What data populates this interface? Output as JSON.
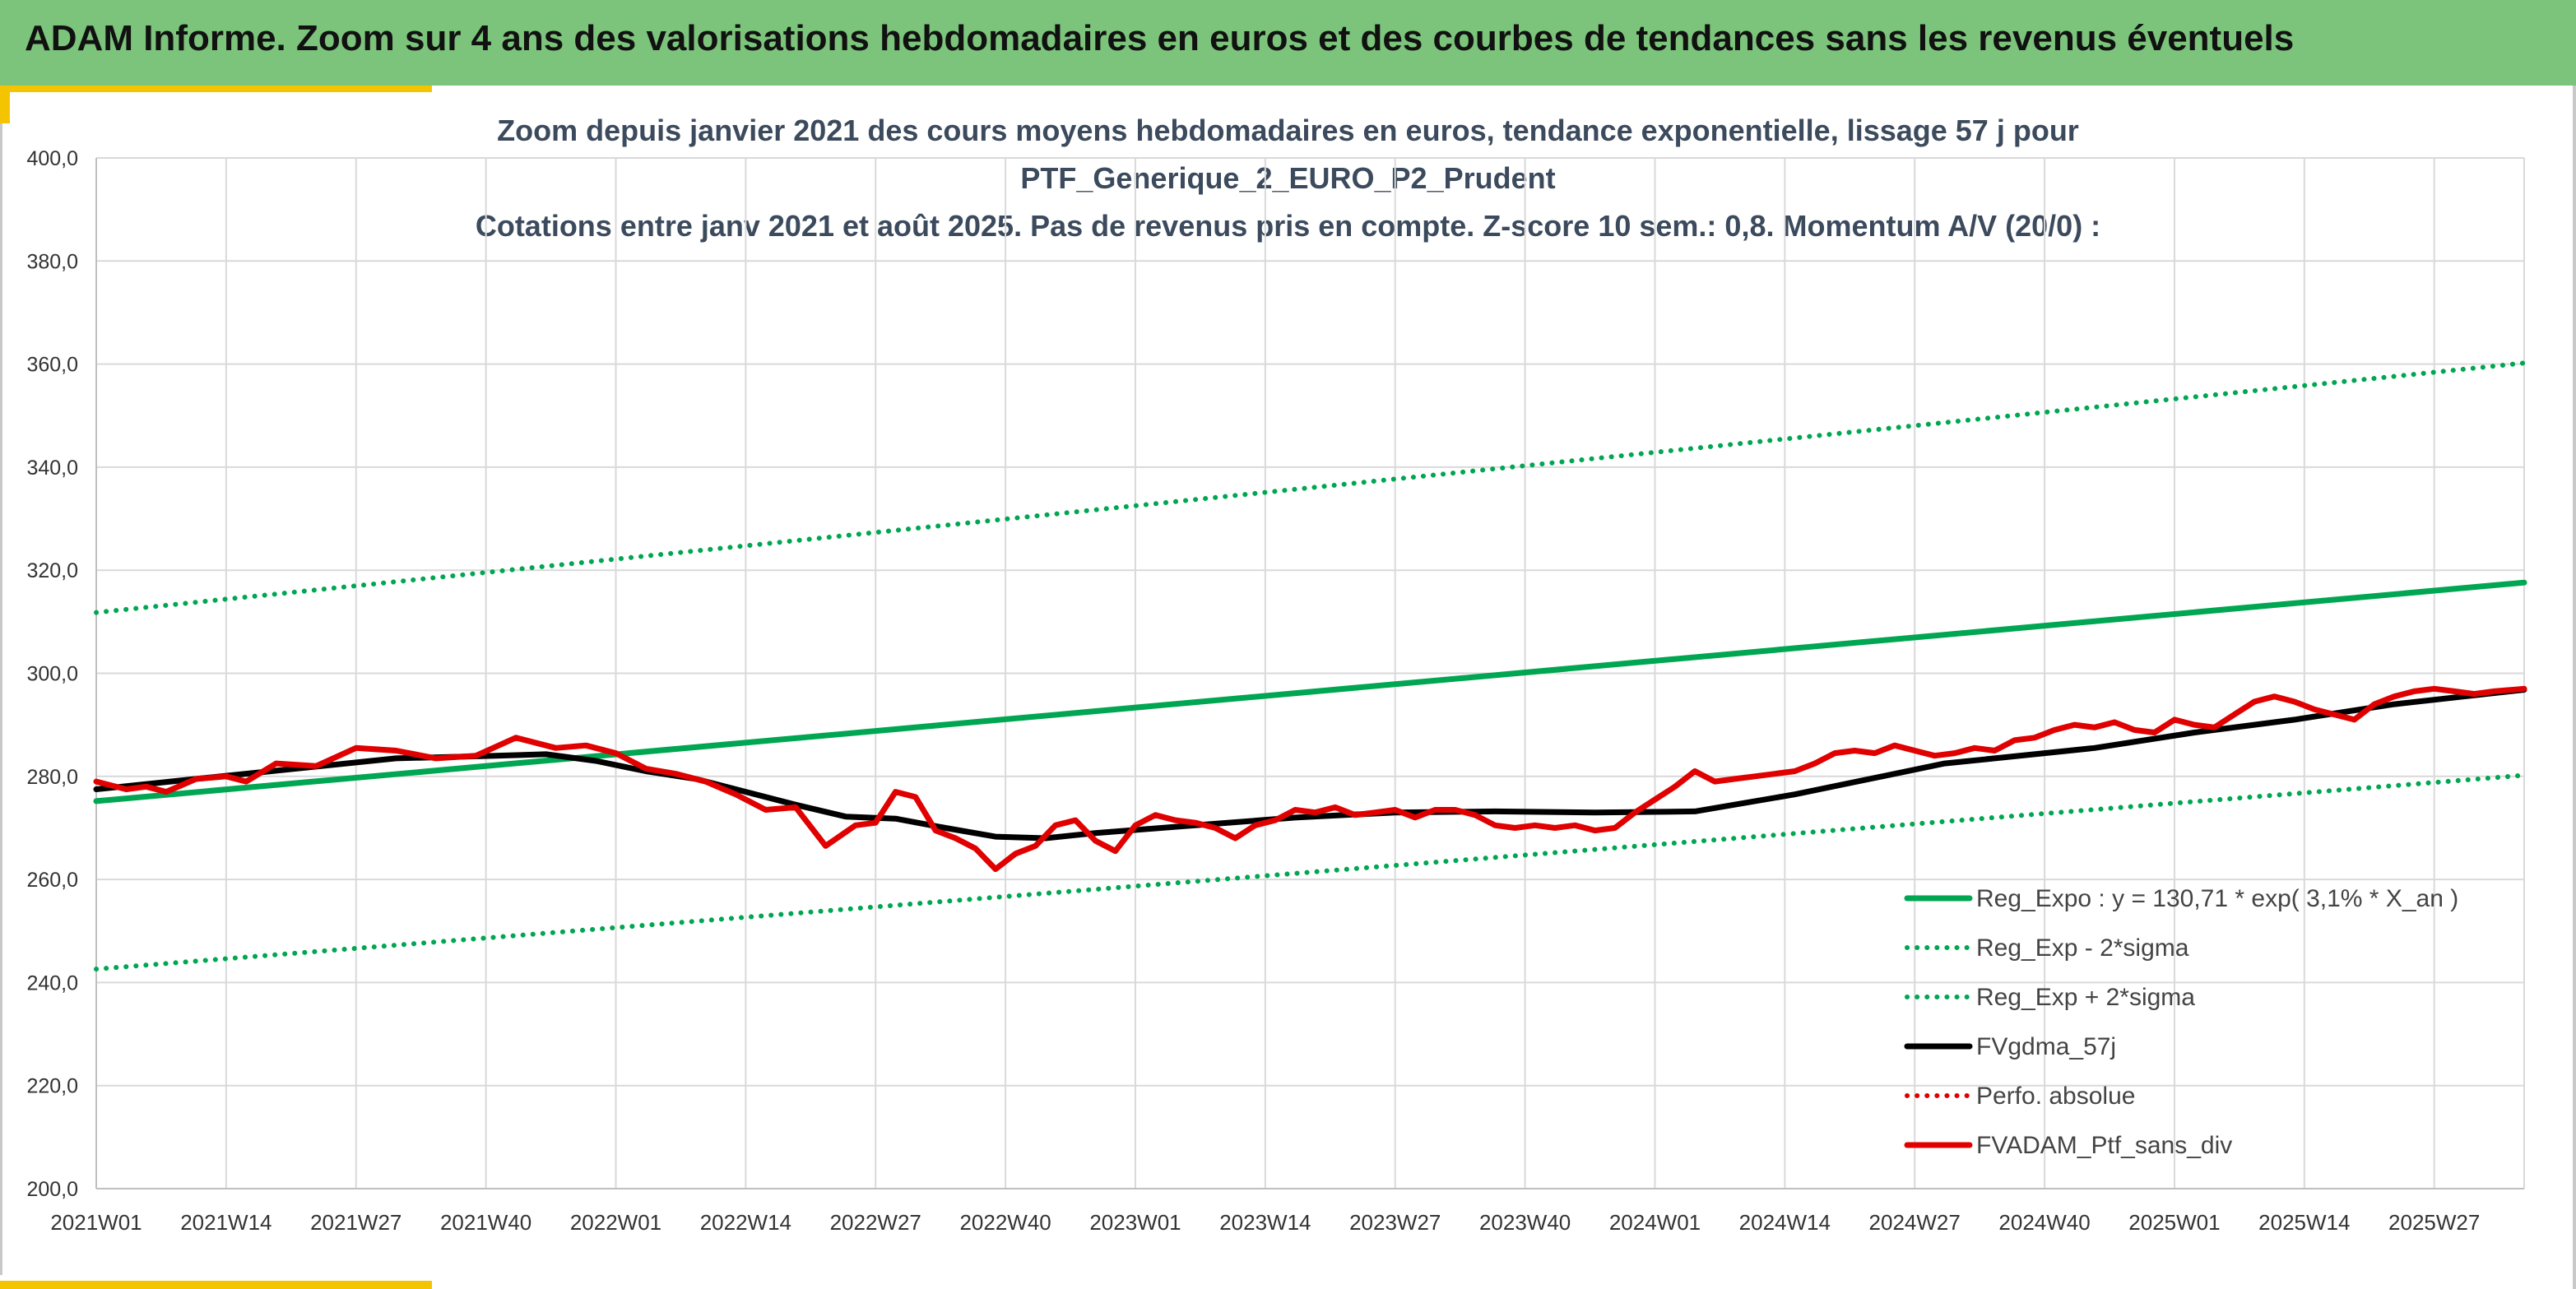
{
  "header": {
    "title": "ADAM Informe. Zoom sur 4 ans des valorisations hebdomadaires en euros et des courbes de tendances sans les revenus éventuels"
  },
  "colors": {
    "header_bg": "#7cc47b",
    "accent_yellow": "#f5c400",
    "trend_green": "#00a651",
    "smooth_black": "#000000",
    "series_red": "#e00000",
    "grid": "#d9d9d9",
    "title_text": "#3b4a5c"
  },
  "chart_data": {
    "type": "line",
    "title_lines": [
      "Zoom depuis janvier 2021 des cours moyens hebdomadaires en euros, tendance exponentielle, lissage 57 j pour",
      "PTF_Generique_2_EURO_P2_Prudent",
      "Cotations entre janv 2021 et août 2025. Pas de revenus pris en compte. Z-score 10 sem.: 0,8. Momentum A/V (20/0) :"
    ],
    "ylim": [
      200,
      400
    ],
    "y_ticks": [
      "200,0",
      "220,0",
      "240,0",
      "260,0",
      "280,0",
      "300,0",
      "320,0",
      "340,0",
      "360,0",
      "380,0",
      "400,0"
    ],
    "x_tick_labels": [
      "2021W01",
      "2021W14",
      "2021W27",
      "2021W40",
      "2022W01",
      "2022W14",
      "2022W27",
      "2022W40",
      "2023W01",
      "2023W14",
      "2023W27",
      "2023W40",
      "2024W01",
      "2024W14",
      "2024W27",
      "2024W40",
      "2025W01",
      "2025W14",
      "2025W27"
    ],
    "x_range_weeks": [
      0,
      243
    ],
    "grid": true,
    "legend_position": "bottom-right",
    "series": [
      {
        "name": "Reg_Expo : y = 130,71 * exp( 3,1% *  X_an )",
        "style": "solid-thick",
        "color": "#00a651",
        "x": [
          0,
          243
        ],
        "y": [
          275.2,
          317.6
        ]
      },
      {
        "name": "Reg_Exp - 2*sigma",
        "style": "dotted",
        "color": "#00a651",
        "x": [
          0,
          243
        ],
        "y": [
          242.6,
          280.2
        ]
      },
      {
        "name": "Reg_Exp + 2*sigma",
        "style": "dotted",
        "color": "#00a651",
        "x": [
          0,
          243
        ],
        "y": [
          311.8,
          360.2
        ]
      },
      {
        "name": "FVgdma_57j",
        "style": "solid-thick",
        "color": "#000000",
        "x": [
          0,
          10,
          20,
          30,
          40,
          45,
          50,
          55,
          60,
          65,
          70,
          75,
          80,
          85,
          90,
          95,
          100,
          110,
          120,
          130,
          140,
          150,
          160,
          170,
          180,
          185,
          190,
          195,
          200,
          210,
          220,
          230,
          243
        ],
        "y": [
          277.5,
          279.5,
          281.5,
          283.5,
          284.0,
          284.3,
          283.0,
          281.0,
          279.5,
          277.0,
          274.5,
          272.2,
          271.8,
          270.0,
          268.3,
          268.0,
          269.0,
          270.5,
          272.0,
          273.0,
          273.2,
          273.0,
          273.2,
          276.5,
          280.5,
          282.5,
          283.5,
          284.5,
          285.5,
          288.5,
          291.0,
          294.0,
          296.8
        ]
      },
      {
        "name": "Perfo. absolue",
        "style": "dotted",
        "color": "#e00000",
        "x": [],
        "y": []
      },
      {
        "name": "FVADAM_Ptf_sans_div",
        "style": "solid-thick",
        "color": "#e00000",
        "x": [
          0,
          3,
          5,
          7,
          10,
          13,
          15,
          18,
          22,
          26,
          30,
          34,
          38,
          42,
          46,
          49,
          52,
          55,
          58,
          61,
          64,
          67,
          70,
          73,
          76,
          78,
          80,
          82,
          84,
          86,
          88,
          90,
          92,
          94,
          96,
          98,
          100,
          102,
          104,
          106,
          108,
          110,
          112,
          114,
          116,
          118,
          120,
          122,
          124,
          126,
          128,
          130,
          132,
          134,
          136,
          138,
          140,
          142,
          144,
          146,
          148,
          150,
          152,
          154,
          156,
          158,
          160,
          162,
          164,
          166,
          168,
          170,
          172,
          174,
          176,
          178,
          180,
          182,
          184,
          186,
          188,
          190,
          192,
          194,
          196,
          198,
          200,
          202,
          204,
          206,
          208,
          210,
          212,
          214,
          216,
          218,
          220,
          222,
          224,
          226,
          228,
          230,
          232,
          234,
          236,
          238,
          240,
          243
        ],
        "y": [
          279.0,
          277.5,
          278.0,
          277.0,
          279.5,
          280.0,
          279.0,
          282.5,
          282.0,
          285.5,
          285.0,
          283.5,
          284.0,
          287.5,
          285.5,
          286.0,
          284.5,
          281.5,
          280.5,
          279.0,
          276.5,
          273.5,
          274.0,
          266.5,
          270.5,
          271.0,
          277.0,
          276.0,
          269.5,
          268.0,
          266.0,
          262.0,
          265.0,
          266.5,
          270.5,
          271.5,
          267.5,
          265.5,
          270.5,
          272.5,
          271.5,
          271.0,
          270.0,
          268.0,
          270.5,
          271.5,
          273.5,
          273.0,
          274.0,
          272.5,
          273.0,
          273.5,
          272.0,
          273.5,
          273.5,
          272.5,
          270.5,
          270.0,
          270.5,
          270.0,
          270.5,
          269.5,
          270.0,
          273.0,
          275.5,
          278.0,
          281.0,
          279.0,
          279.5,
          280.0,
          280.5,
          281.0,
          282.5,
          284.5,
          285.0,
          284.5,
          286.0,
          285.0,
          284.0,
          284.5,
          285.5,
          285.0,
          287.0,
          287.5,
          289.0,
          290.0,
          289.5,
          290.5,
          289.0,
          288.5,
          291.0,
          290.0,
          289.5,
          292.0,
          294.5,
          295.5,
          294.5,
          293.0,
          292.0,
          291.0,
          294.0,
          295.5,
          296.5,
          297.0,
          296.5,
          296.0,
          296.5,
          297.0
        ]
      }
    ]
  }
}
